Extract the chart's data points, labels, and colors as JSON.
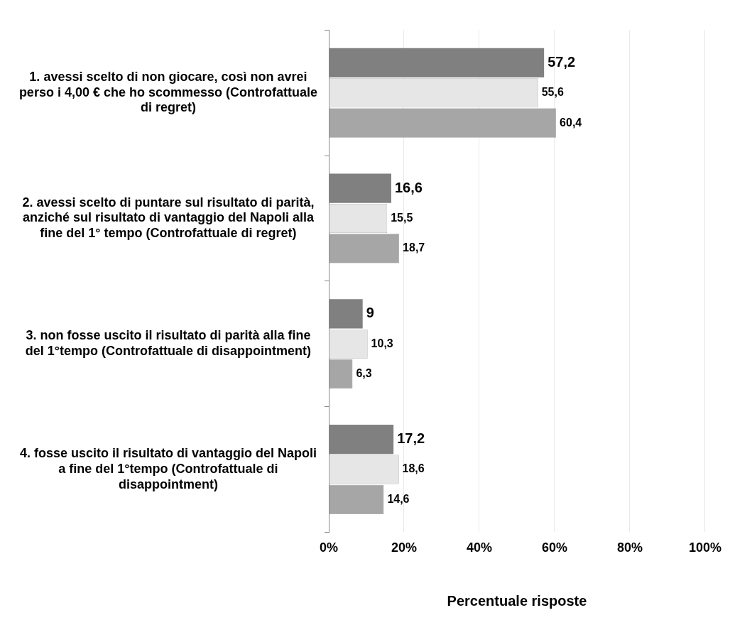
{
  "chart_data": {
    "type": "bar",
    "orientation": "horizontal",
    "xlabel": "Percentuale risposte",
    "categories": [
      "1. avessi scelto di non giocare, così non avrei perso i 4,00 € che ho scommesso (Controfattuale di regret)",
      "2. avessi scelto di puntare sul risultato di parità, anziché sul risultato di vantaggio del Napoli alla fine del 1° tempo (Controfattuale di regret)",
      "3. non fosse uscito il risultato di parità alla fine del 1°tempo (Controfattuale di disappointment)",
      "4. fosse uscito il risultato di vantaggio del Napoli a fine del 1°tempo (Controfattuale di disappointment)"
    ],
    "series": [
      {
        "color": "#808080",
        "values": [
          57.2,
          16.6,
          9,
          17.2
        ],
        "value_labels": [
          "57,2",
          "16,6",
          "9",
          "17,2"
        ]
      },
      {
        "color": "#e6e6e6",
        "values": [
          55.6,
          15.5,
          10.3,
          18.6
        ],
        "value_labels": [
          "55,6",
          "15,5",
          "10,3",
          "18,6"
        ]
      },
      {
        "color": "#a6a6a6",
        "values": [
          60.4,
          18.7,
          6.3,
          14.6
        ],
        "value_labels": [
          "60,4",
          "18,7",
          "6,3",
          "14,6"
        ]
      }
    ],
    "xlim": [
      0,
      100
    ],
    "xticks": [
      {
        "value": 0,
        "label": "0%"
      },
      {
        "value": 20,
        "label": "20%"
      },
      {
        "value": 40,
        "label": "40%"
      },
      {
        "value": 60,
        "label": "60%"
      },
      {
        "value": 80,
        "label": "80%"
      },
      {
        "value": 100,
        "label": "100%"
      }
    ],
    "grid": "x",
    "legend": false
  }
}
